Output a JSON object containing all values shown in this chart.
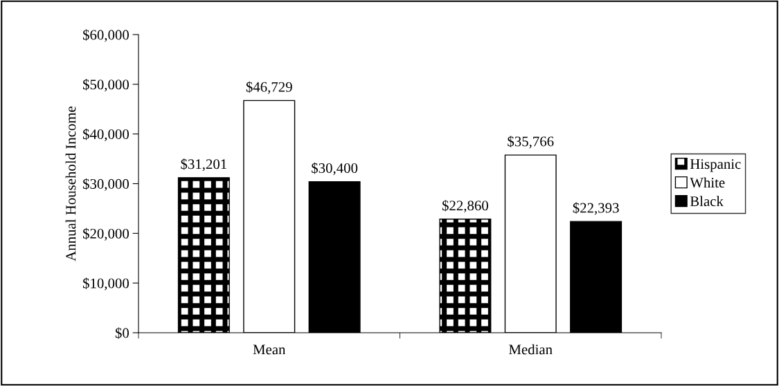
{
  "chart_data": {
    "type": "bar",
    "ylabel": "Annual Household Income",
    "categories": [
      "Mean",
      "Median"
    ],
    "series": [
      {
        "name": "Hispanic",
        "color": "#000000",
        "values": [
          31201,
          22860
        ],
        "value_labels": [
          "$31,201",
          "$22,860"
        ]
      },
      {
        "name": "White",
        "color": "#ffffff",
        "values": [
          46729,
          35766
        ],
        "value_labels": [
          "$46,729",
          "$35,766"
        ]
      },
      {
        "name": "Black",
        "color": "#000000",
        "values": [
          30400,
          22393
        ],
        "value_labels": [
          "$30,400",
          "$22,393"
        ]
      }
    ],
    "ylim": [
      0,
      60000
    ],
    "yticks": [
      {
        "value": 0,
        "label": "$0"
      },
      {
        "value": 10000,
        "label": "$10,000"
      },
      {
        "value": 20000,
        "label": "$20,000"
      },
      {
        "value": 30000,
        "label": "$30,000"
      },
      {
        "value": 40000,
        "label": "$40,000"
      },
      {
        "value": 50000,
        "label": "$50,000"
      },
      {
        "value": 60000,
        "label": "$60,000"
      }
    ],
    "grid": false,
    "legend": "right"
  }
}
